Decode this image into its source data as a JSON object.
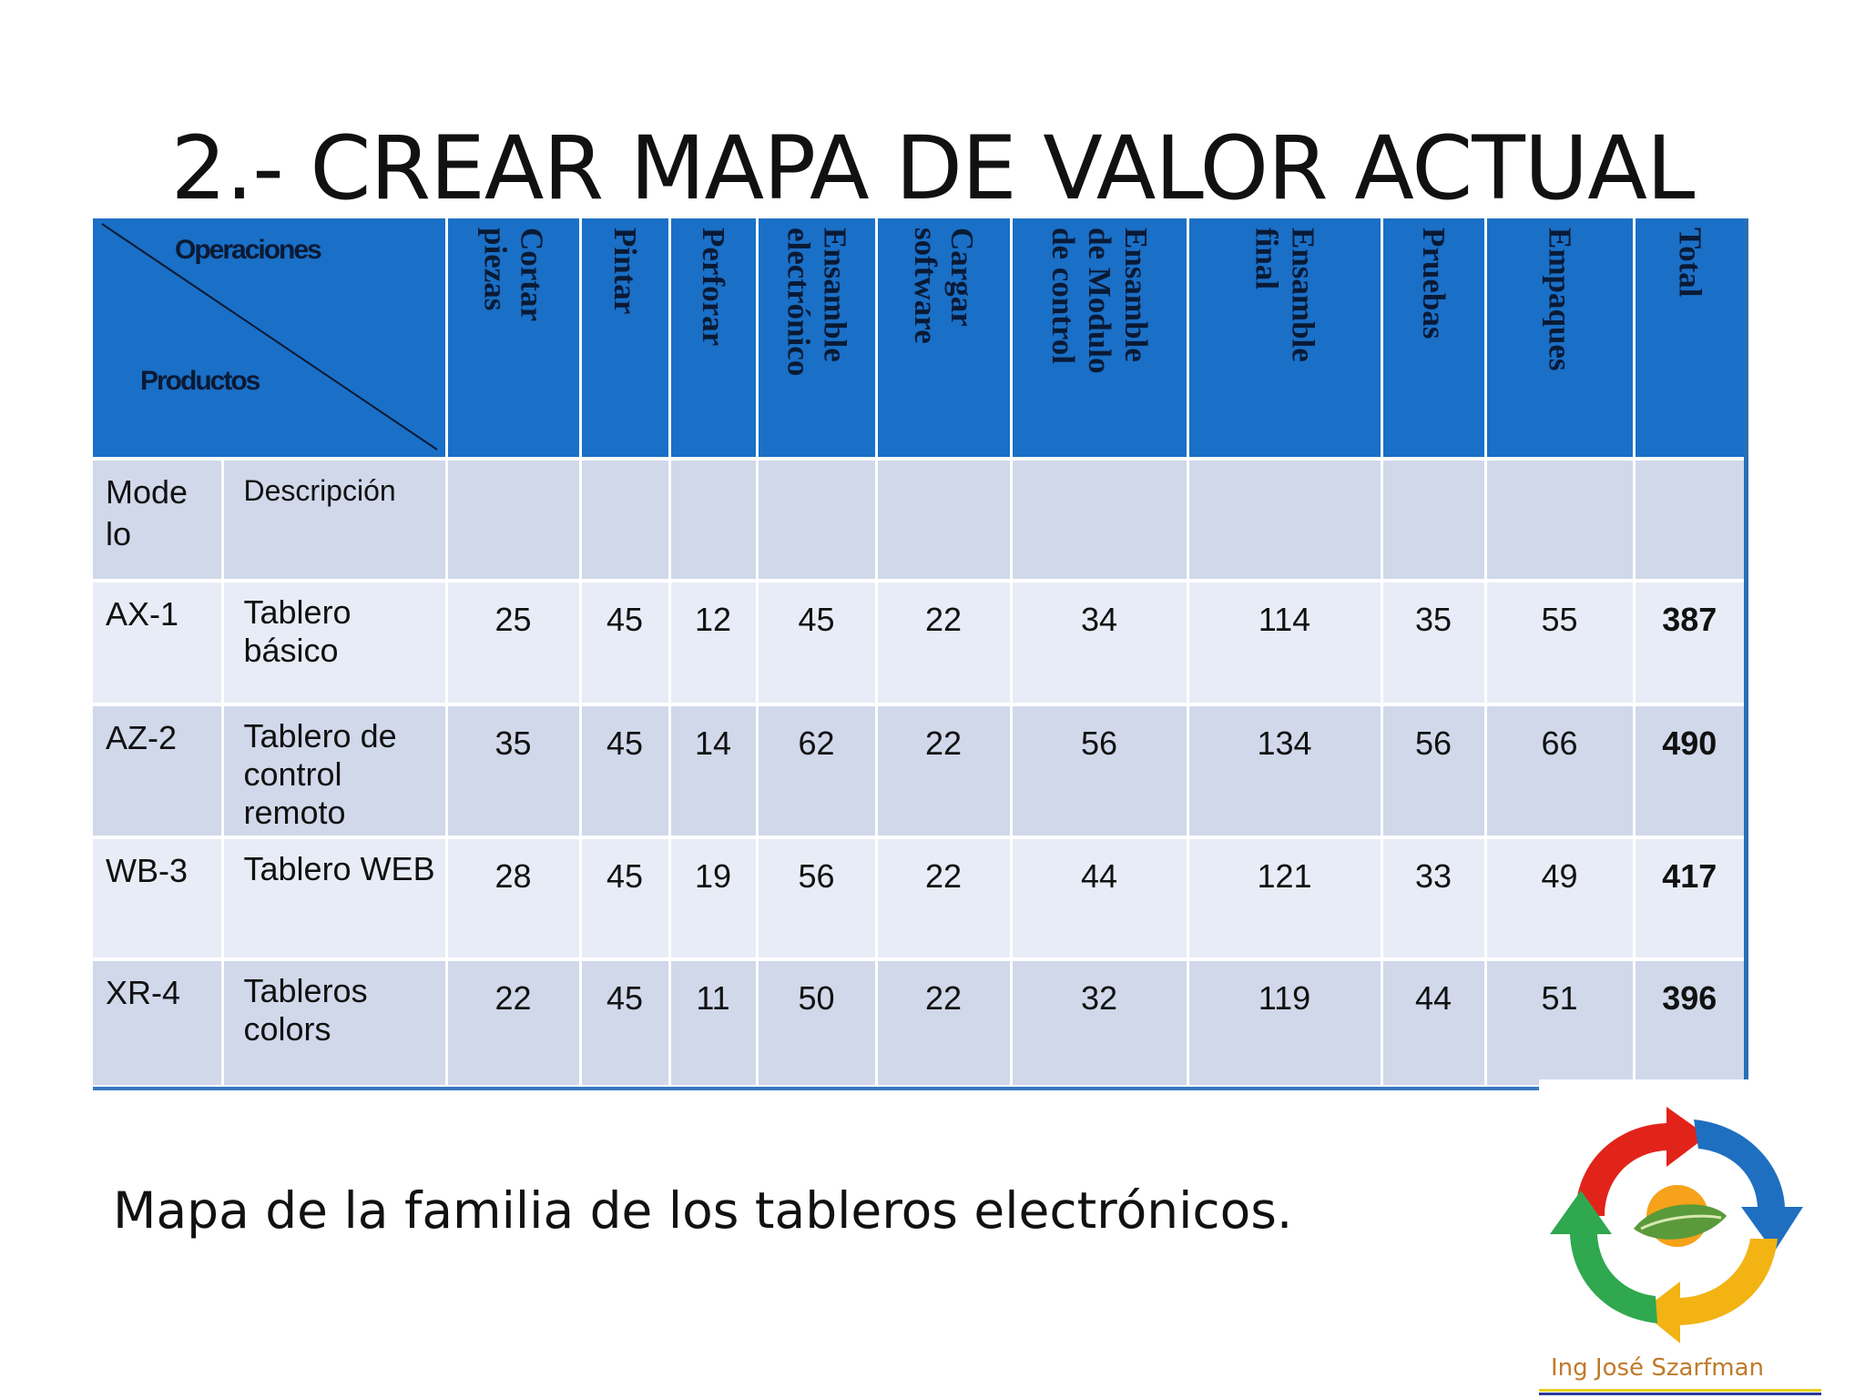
{
  "title": "2.- CREAR MAPA DE VALOR ACTUAL",
  "table": {
    "corner_top": "Operaciones",
    "corner_bottom": "Productos",
    "operations": [
      "Cortar\npiezas",
      "Pintar",
      "Perforar",
      "Ensamble\nelectrónico",
      "Cargar\nsoftware",
      "Ensamble\nde Modulo\nde control",
      "Ensamble\nfinal",
      "Pruebas",
      "Empaques",
      "Total"
    ],
    "subheader": {
      "model": "Mode lo",
      "description": "Descripción"
    },
    "rows": [
      {
        "model": "AX-1",
        "description": "Tablero básico",
        "values": [
          "25",
          "45",
          "12",
          "45",
          "22",
          "34",
          "114",
          "35",
          "55"
        ],
        "total": "387"
      },
      {
        "model": "AZ-2",
        "description": "Tablero de control remoto",
        "values": [
          "35",
          "45",
          "14",
          "62",
          "22",
          "56",
          "134",
          "56",
          "66"
        ],
        "total": "490"
      },
      {
        "model": "WB-3",
        "description": "Tablero WEB",
        "values": [
          "28",
          "45",
          "19",
          "56",
          "22",
          "44",
          "121",
          "33",
          "49"
        ],
        "total": "417"
      },
      {
        "model": "XR-4",
        "description": "Tableros colors",
        "values": [
          "22",
          "45",
          "11",
          "50",
          "22",
          "32",
          "119",
          "44",
          "51"
        ],
        "total": "396"
      }
    ]
  },
  "caption": "Mapa de la familia de los tableros electrónicos.",
  "logo": {
    "credit": "Ing José Szarfman",
    "icon": "recycle-arrows-logo-icon"
  },
  "colors": {
    "header_blue": "#1a6fc6",
    "row_dark": "#d0d8ea",
    "row_light": "#e8ecf6"
  }
}
